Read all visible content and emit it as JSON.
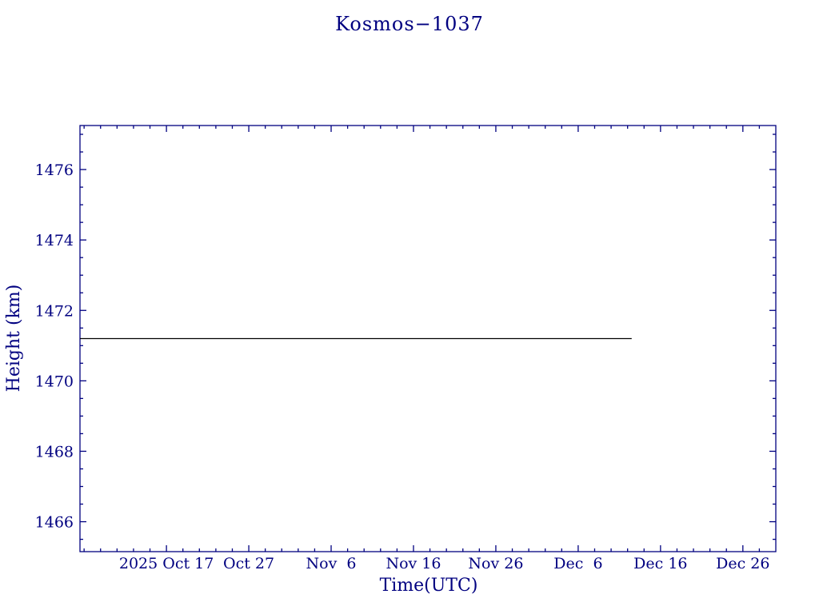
{
  "chart_data": {
    "type": "line",
    "title": "Kosmos−1037",
    "xlabel": "Time(UTC)",
    "ylabel": "Height (km)",
    "axis_color": "#000080",
    "background_color": "#ffffff",
    "grid": false,
    "legend": false,
    "x_units": "days since 2025-10-01 00:00 UTC",
    "x_domain_days": [
      5.5,
      90
    ],
    "y_domain_km": [
      1465.15,
      1477.25
    ],
    "x_ticks": [
      {
        "day": 16,
        "label": "2025 Oct 17"
      },
      {
        "day": 26,
        "label": "Oct 27"
      },
      {
        "day": 36,
        "label": "Nov  6"
      },
      {
        "day": 46,
        "label": "Nov 16"
      },
      {
        "day": 56,
        "label": "Nov 26"
      },
      {
        "day": 66,
        "label": "Dec  6"
      },
      {
        "day": 76,
        "label": "Dec 16"
      },
      {
        "day": 86,
        "label": "Dec 26"
      }
    ],
    "x_minor_tick_step_days": 2,
    "y_ticks": [
      1466,
      1468,
      1470,
      1472,
      1474,
      1476
    ],
    "y_minor_tick_step_km": 0.5,
    "series": [
      {
        "name": "height",
        "color": "#000000",
        "points": [
          {
            "day": 5.5,
            "km": 1471.2
          },
          {
            "day": 72.5,
            "km": 1471.2
          }
        ]
      }
    ]
  }
}
